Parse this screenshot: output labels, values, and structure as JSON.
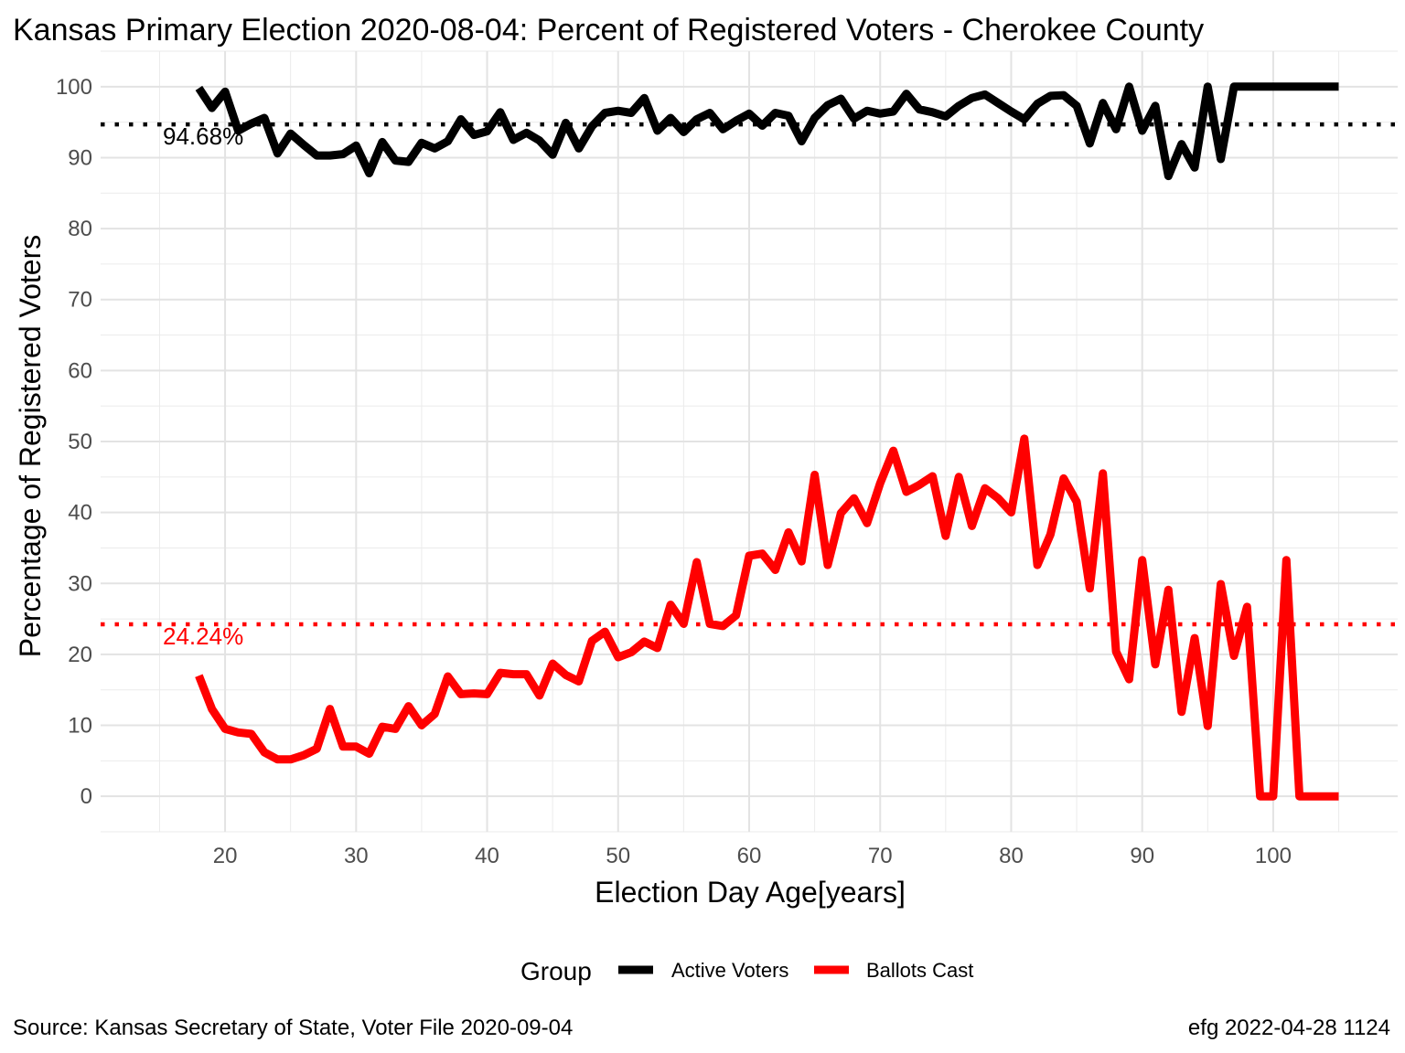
{
  "chart_data": {
    "type": "line",
    "title": "Kansas Primary Election 2020-08-04:  Percent of Registered Voters - Cherokee County",
    "xlabel": "Election Day Age[years]",
    "ylabel": "Percentage of Registered Voters",
    "xlim": [
      10.5,
      109.5
    ],
    "ylim": [
      -5,
      105
    ],
    "x_ticks": [
      20,
      30,
      40,
      50,
      60,
      70,
      80,
      90,
      100
    ],
    "y_ticks": [
      0,
      10,
      20,
      30,
      40,
      50,
      60,
      70,
      80,
      90,
      100
    ],
    "grid": true,
    "legend": {
      "title": "Group",
      "position": "bottom",
      "entries": [
        {
          "label": "Active Voters",
          "color": "#000000"
        },
        {
          "label": "Ballots Cast",
          "color": "#ff0000"
        }
      ]
    },
    "x": [
      18,
      19,
      20,
      21,
      22,
      23,
      24,
      25,
      26,
      27,
      28,
      29,
      30,
      31,
      32,
      33,
      34,
      35,
      36,
      37,
      38,
      39,
      40,
      41,
      42,
      43,
      44,
      45,
      46,
      47,
      48,
      49,
      50,
      51,
      52,
      53,
      54,
      55,
      56,
      57,
      58,
      59,
      60,
      61,
      62,
      63,
      64,
      65,
      66,
      67,
      68,
      69,
      70,
      71,
      72,
      73,
      74,
      75,
      76,
      77,
      78,
      79,
      80,
      81,
      82,
      83,
      84,
      85,
      86,
      87,
      88,
      89,
      90,
      91,
      92,
      93,
      94,
      95,
      96,
      97,
      98,
      99,
      100,
      101,
      102,
      103,
      104,
      105
    ],
    "series": [
      {
        "name": "Active Voters",
        "color": "#000000",
        "values": [
          99.8,
          97.0,
          99.3,
          93.8,
          94.8,
          95.6,
          90.6,
          93.4,
          91.8,
          90.3,
          90.3,
          90.5,
          91.7,
          87.8,
          92.2,
          89.6,
          89.4,
          92.1,
          91.3,
          92.3,
          95.4,
          93.2,
          93.7,
          96.4,
          92.5,
          93.5,
          92.4,
          90.4,
          94.9,
          91.3,
          94.4,
          96.3,
          96.6,
          96.3,
          98.4,
          93.8,
          95.6,
          93.6,
          95.4,
          96.3,
          94.0,
          95.2,
          96.2,
          94.5,
          96.3,
          95.9,
          92.3,
          95.6,
          97.4,
          98.3,
          95.5,
          96.6,
          96.2,
          96.5,
          99.0,
          96.8,
          96.4,
          95.8,
          97.3,
          98.4,
          98.9,
          97.7,
          96.5,
          95.4,
          97.6,
          98.7,
          98.8,
          97.3,
          92.0,
          97.7,
          94.0,
          100.0,
          93.8,
          97.3,
          87.4,
          91.9,
          88.6,
          100.0,
          89.8,
          100.0,
          100.0,
          100.0,
          100.0,
          100.0,
          100.0,
          100.0,
          100.0,
          100.0
        ]
      },
      {
        "name": "Ballots Cast",
        "color": "#ff0000",
        "values": [
          17.0,
          12.3,
          9.5,
          9.0,
          8.8,
          6.2,
          5.2,
          5.2,
          5.8,
          6.7,
          12.3,
          7.0,
          7.0,
          6.0,
          9.8,
          9.5,
          12.7,
          10.0,
          11.6,
          16.9,
          14.4,
          14.5,
          14.4,
          17.4,
          17.2,
          17.2,
          14.2,
          18.7,
          17.1,
          16.2,
          21.9,
          23.2,
          19.6,
          20.3,
          21.8,
          20.9,
          27.0,
          24.3,
          33.0,
          24.3,
          24.0,
          25.5,
          33.9,
          34.2,
          31.9,
          37.2,
          33.1,
          45.3,
          32.6,
          39.9,
          42.0,
          38.5,
          44.1,
          48.7,
          42.9,
          43.9,
          45.1,
          36.7,
          45.0,
          38.1,
          43.4,
          42.0,
          40.0,
          50.4,
          32.6,
          36.9,
          44.8,
          41.5,
          29.3,
          45.5,
          20.4,
          16.5,
          33.3,
          18.6,
          29.1,
          11.9,
          22.3,
          9.9,
          29.9,
          19.8,
          26.7,
          0.0,
          0.0,
          33.3,
          0.0,
          0.0,
          0.0,
          0.0
        ]
      }
    ],
    "reference_lines": [
      {
        "value": 94.68,
        "label": "94.68%",
        "color": "#000000"
      },
      {
        "value": 24.24,
        "label": "24.24%",
        "color": "#ff0000"
      }
    ]
  },
  "caption": {
    "left": "Source:  Kansas Secretary of State, Voter File  2020-09-04",
    "right": "efg 2022-04-28 1124"
  }
}
